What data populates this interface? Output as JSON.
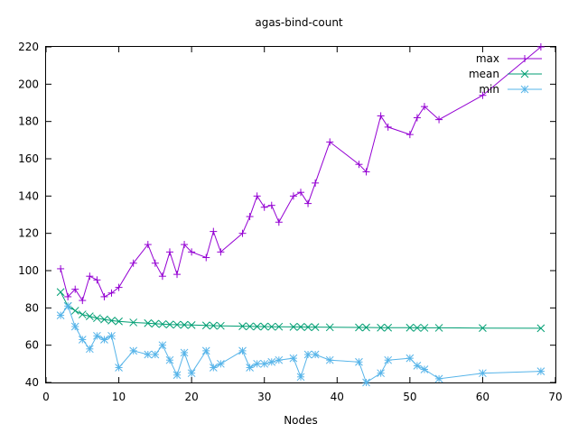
{
  "chart_data": {
    "type": "line",
    "title": "agas-bind-count",
    "xlabel": "Nodes",
    "ylabel": "",
    "xlim": [
      0,
      70
    ],
    "ylim": [
      40,
      220
    ],
    "xticks": [
      0,
      10,
      20,
      30,
      40,
      50,
      60,
      70
    ],
    "yticks": [
      40,
      60,
      80,
      100,
      120,
      140,
      160,
      180,
      200,
      220
    ],
    "grid": false,
    "legend": "top-right",
    "series": [
      {
        "name": "max",
        "color": "#9400d3",
        "marker": "plus",
        "points": [
          [
            2,
            101
          ],
          [
            3,
            86
          ],
          [
            4,
            90
          ],
          [
            5,
            84
          ],
          [
            6,
            97
          ],
          [
            7,
            95
          ],
          [
            8,
            86
          ],
          [
            9,
            88
          ],
          [
            10,
            91
          ],
          [
            12,
            104
          ],
          [
            14,
            114
          ],
          [
            15,
            104
          ],
          [
            16,
            97
          ],
          [
            17,
            110
          ],
          [
            18,
            98
          ],
          [
            19,
            114
          ],
          [
            20,
            110
          ],
          [
            22,
            107
          ],
          [
            23,
            121
          ],
          [
            24,
            110
          ],
          [
            27,
            120
          ],
          [
            28,
            129
          ],
          [
            29,
            140
          ],
          [
            30,
            134
          ],
          [
            31,
            135
          ],
          [
            32,
            126
          ],
          [
            34,
            140
          ],
          [
            35,
            142
          ],
          [
            36,
            136
          ],
          [
            37,
            147
          ],
          [
            39,
            169
          ],
          [
            43,
            157
          ],
          [
            44,
            153
          ],
          [
            46,
            183
          ],
          [
            47,
            177
          ],
          [
            50,
            173
          ],
          [
            51,
            182
          ],
          [
            52,
            188
          ],
          [
            54,
            181
          ],
          [
            60,
            194
          ],
          [
            68,
            220
          ]
        ]
      },
      {
        "name": "mean",
        "color": "#009e73",
        "marker": "x",
        "points": [
          [
            2,
            88.5
          ],
          [
            3,
            81
          ],
          [
            4,
            78.5
          ],
          [
            5,
            76.5
          ],
          [
            6,
            75.5
          ],
          [
            7,
            74.5
          ],
          [
            8,
            73.8
          ],
          [
            9,
            73.2
          ],
          [
            10,
            72.8
          ],
          [
            12,
            72.2
          ],
          [
            14,
            71.8
          ],
          [
            15,
            71.5
          ],
          [
            16,
            71.3
          ],
          [
            17,
            71.1
          ],
          [
            18,
            71.0
          ],
          [
            19,
            70.9
          ],
          [
            20,
            70.8
          ],
          [
            22,
            70.6
          ],
          [
            23,
            70.5
          ],
          [
            24,
            70.4
          ],
          [
            27,
            70.2
          ],
          [
            28,
            70.1
          ],
          [
            29,
            70.0
          ],
          [
            30,
            70.0
          ],
          [
            31,
            69.9
          ],
          [
            32,
            69.9
          ],
          [
            34,
            69.8
          ],
          [
            35,
            69.8
          ],
          [
            36,
            69.7
          ],
          [
            37,
            69.7
          ],
          [
            39,
            69.6
          ],
          [
            43,
            69.5
          ],
          [
            44,
            69.5
          ],
          [
            46,
            69.4
          ],
          [
            47,
            69.4
          ],
          [
            50,
            69.4
          ],
          [
            51,
            69.3
          ],
          [
            52,
            69.3
          ],
          [
            54,
            69.3
          ],
          [
            60,
            69.2
          ],
          [
            68,
            69.1
          ]
        ]
      },
      {
        "name": "min",
        "color": "#56b4e9",
        "marker": "star",
        "points": [
          [
            2,
            76
          ],
          [
            3,
            81
          ],
          [
            4,
            70
          ],
          [
            5,
            63
          ],
          [
            6,
            58
          ],
          [
            7,
            65
          ],
          [
            8,
            63
          ],
          [
            9,
            65
          ],
          [
            10,
            48
          ],
          [
            12,
            57
          ],
          [
            14,
            55
          ],
          [
            15,
            55
          ],
          [
            16,
            60
          ],
          [
            17,
            52
          ],
          [
            18,
            44
          ],
          [
            19,
            56
          ],
          [
            20,
            45
          ],
          [
            22,
            57
          ],
          [
            23,
            48
          ],
          [
            24,
            50
          ],
          [
            27,
            57
          ],
          [
            28,
            48
          ],
          [
            29,
            50
          ],
          [
            30,
            50
          ],
          [
            31,
            51
          ],
          [
            32,
            52
          ],
          [
            34,
            53
          ],
          [
            35,
            43
          ],
          [
            36,
            55
          ],
          [
            37,
            55
          ],
          [
            39,
            52
          ],
          [
            43,
            51
          ],
          [
            44,
            40
          ],
          [
            46,
            45
          ],
          [
            47,
            52
          ],
          [
            50,
            53
          ],
          [
            51,
            49
          ],
          [
            52,
            47
          ],
          [
            54,
            42
          ],
          [
            60,
            45
          ],
          [
            68,
            46
          ]
        ]
      }
    ]
  }
}
